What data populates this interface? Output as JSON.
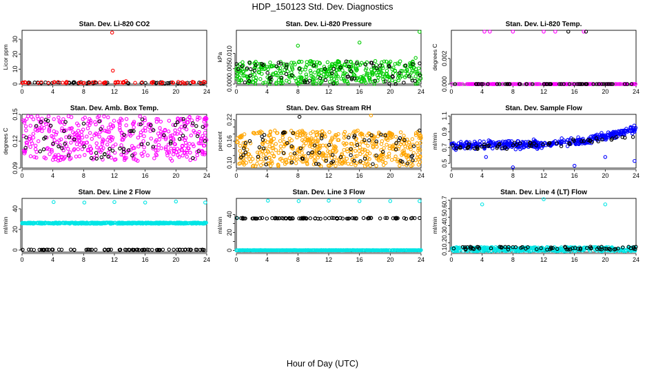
{
  "figure": {
    "title": "HDP_150123  Std. Dev. Diagnostics",
    "xlabel": "Hour of Day (UTC)"
  },
  "chart_data": [
    {
      "type": "scatter",
      "title": "Stan. Dev. Li-820 CO2",
      "ylabel": "Licor ppm",
      "xlim": [
        0,
        24
      ],
      "ylim": [
        0,
        36
      ],
      "xticks": [
        "0",
        "4",
        "8",
        "12",
        "16",
        "20",
        "24"
      ],
      "yticks": [
        0,
        10,
        20,
        30
      ],
      "series": [
        {
          "name": "black",
          "color": "#000000",
          "mode": "band",
          "n": 50,
          "base": 0.4,
          "spread": 0.9,
          "seed": 11
        },
        {
          "name": "red",
          "color": "#ff0000",
          "mode": "band",
          "n": 60,
          "base": 0.5,
          "spread": 1.0,
          "seed": 12,
          "points": [
            [
              11.7,
              34.5
            ],
            [
              11.8,
              9.0
            ],
            [
              13.5,
              2.0
            ],
            [
              2.5,
              1.3
            ]
          ]
        }
      ]
    },
    {
      "type": "scatter",
      "title": "Stan. Dev. Li-820 Pressure",
      "ylabel": "kPa",
      "xlim": [
        0,
        24
      ],
      "ylim": [
        0,
        0.0175
      ],
      "xticks": [
        "0",
        "4",
        "8",
        "12",
        "16",
        "20",
        "24"
      ],
      "yticks": [
        0.0,
        0.005,
        0.01
      ],
      "ytickFormat": 3,
      "series": [
        {
          "name": "green",
          "color": "#00cc00",
          "mode": "band",
          "n": 430,
          "base": 0.0,
          "spread": 0.0075,
          "seed": 21,
          "points": [
            [
              8.0,
              0.0125
            ],
            [
              16.0,
              0.0135
            ],
            [
              23.8,
              0.017
            ],
            [
              23.3,
              0.0085
            ],
            [
              0.5,
              0.0065
            ]
          ]
        },
        {
          "name": "black",
          "color": "#000000",
          "mode": "band",
          "n": 70,
          "base": 0.0,
          "spread": 0.0075,
          "seed": 22
        }
      ]
    },
    {
      "type": "scatter",
      "title": "Stan. Dev. Li-820 Temp.",
      "ylabel": "degrees C",
      "xlim": [
        0,
        24
      ],
      "ylim": [
        0,
        0.0042
      ],
      "xticks": [
        "0",
        "4",
        "8",
        "12",
        "16",
        "20",
        "24"
      ],
      "yticks": [
        0.0,
        0.002
      ],
      "ytickFormat": 3,
      "series": [
        {
          "name": "magenta",
          "color": "#ff00ff",
          "mode": "band",
          "n": 150,
          "base": 0.0,
          "spread": 0.0,
          "seed": 31,
          "points": [
            [
              4.3,
              0.0041
            ],
            [
              5.0,
              0.0041
            ],
            [
              8.0,
              0.0041
            ],
            [
              12.0,
              0.0041
            ],
            [
              13.5,
              0.0041
            ],
            [
              17.2,
              0.0041
            ]
          ]
        },
        {
          "name": "black",
          "color": "#000000",
          "mode": "band",
          "n": 55,
          "base": 0.0,
          "spread": 0.0,
          "seed": 32,
          "points": [
            [
              15.2,
              0.0041
            ],
            [
              17.5,
              0.0041
            ]
          ]
        }
      ]
    },
    {
      "type": "scatter",
      "title": "Stan. Dev. Amb. Box Temp.",
      "ylabel": "degrees C",
      "xlim": [
        0,
        24
      ],
      "ylim": [
        0.09,
        0.15
      ],
      "xticks": [
        "0",
        "4",
        "8",
        "12",
        "16",
        "20",
        "24"
      ],
      "yticks": [
        0.09,
        0.12,
        0.15
      ],
      "ytickFormat": 2,
      "series": [
        {
          "name": "magenta",
          "color": "#ff00ff",
          "mode": "band",
          "n": 440,
          "base": 0.098,
          "spread": 0.05,
          "seed": 41
        },
        {
          "name": "black",
          "color": "#000000",
          "mode": "band",
          "n": 65,
          "base": 0.1,
          "spread": 0.045,
          "seed": 42
        }
      ]
    },
    {
      "type": "scatter",
      "title": "Stan. Dev. Gas Stream RH",
      "ylabel": "percent",
      "xlim": [
        0,
        24
      ],
      "ylim": [
        0.085,
        0.235
      ],
      "xticks": [
        "0",
        "4",
        "8",
        "12",
        "16",
        "20",
        "24"
      ],
      "yticks": [
        0.1,
        0.12,
        0.14,
        0.16,
        0.18,
        0.2,
        0.22
      ],
      "yticksShown": [
        0.1,
        0.16,
        0.22
      ],
      "ytickFormat": 2,
      "series": [
        {
          "name": "orange",
          "color": "#ffa500",
          "mode": "band",
          "n": 520,
          "base": 0.09,
          "spread": 0.1,
          "seed": 51,
          "points": [
            [
              8.0,
              0.185
            ],
            [
              17.5,
              0.232
            ],
            [
              5.0,
              0.19
            ]
          ]
        },
        {
          "name": "black",
          "color": "#000000",
          "mode": "band",
          "n": 70,
          "base": 0.095,
          "spread": 0.09,
          "seed": 52,
          "points": [
            [
              8.2,
              0.228
            ],
            [
              23.8,
              0.19
            ]
          ]
        }
      ]
    },
    {
      "type": "scatter",
      "title": "Stan. Dev. Sample Flow",
      "ylabel": "ml/min",
      "xlim": [
        0,
        24
      ],
      "ylim": [
        0.44,
        1.12
      ],
      "xticks": [
        "0",
        "4",
        "8",
        "12",
        "16",
        "20",
        "24"
      ],
      "yticks": [
        0.5,
        0.6,
        0.7,
        0.8,
        0.9,
        1.0,
        1.1
      ],
      "yticksShown": [
        0.5,
        0.7,
        0.9,
        1.1
      ],
      "ytickFormat": 1,
      "series": [
        {
          "name": "blue",
          "color": "#0000ff",
          "mode": "trend",
          "n": 420,
          "seed": 61,
          "trend": [
            [
              0,
              0.72
            ],
            [
              12,
              0.74
            ],
            [
              18,
              0.8
            ],
            [
              24,
              0.93
            ]
          ],
          "jitter": 0.07,
          "points": [
            [
              8.0,
              0.45
            ],
            [
              16.0,
              0.47
            ],
            [
              23.8,
              0.53
            ],
            [
              20.0,
              0.58
            ],
            [
              4.5,
              0.58
            ]
          ]
        },
        {
          "name": "black",
          "color": "#000000",
          "mode": "trend",
          "n": 60,
          "seed": 62,
          "trend": [
            [
              0,
              0.7
            ],
            [
              12,
              0.74
            ],
            [
              24,
              0.84
            ]
          ],
          "jitter": 0.06
        }
      ]
    },
    {
      "type": "scatter",
      "title": "Stan. Dev. Line 2 Flow",
      "ylabel": "ml/min",
      "xlim": [
        0,
        24
      ],
      "ylim": [
        -2,
        50
      ],
      "xticks": [
        "0",
        "4",
        "8",
        "12",
        "16",
        "20",
        "24"
      ],
      "yticks": [
        0,
        20,
        40
      ],
      "series": [
        {
          "name": "cyan",
          "color": "#00e5e5",
          "mode": "band",
          "n": 500,
          "base": 25.5,
          "spread": 1.2,
          "seed": 71,
          "points": [
            [
              4.1,
              46.5
            ],
            [
              8.1,
              46.0
            ],
            [
              12.0,
              46.5
            ],
            [
              16.0,
              46.0
            ],
            [
              20.0,
              47.0
            ],
            [
              23.8,
              46.0
            ]
          ]
        },
        {
          "name": "black",
          "color": "#000000",
          "mode": "band",
          "n": 80,
          "base": 0.2,
          "spread": 0.3,
          "seed": 72
        }
      ]
    },
    {
      "type": "scatter",
      "title": "Stan. Dev. Line 3 Flow",
      "ylabel": "ml/min",
      "xlim": [
        0,
        24
      ],
      "ylim": [
        -2,
        58
      ],
      "xticks": [
        "0",
        "4",
        "8",
        "12",
        "16",
        "20",
        "24"
      ],
      "yticks": [
        0,
        10,
        20,
        30,
        40
      ],
      "yticksShown": [
        0,
        20,
        40
      ],
      "series": [
        {
          "name": "cyan",
          "color": "#00e5e5",
          "mode": "band",
          "n": 500,
          "base": 0.0,
          "spread": 0.3,
          "seed": 81,
          "points": [
            [
              0.1,
              36
            ],
            [
              4.1,
              55.5
            ],
            [
              8.1,
              55.0
            ],
            [
              12.0,
              55.5
            ],
            [
              16.0,
              55.0
            ],
            [
              20.0,
              55.0
            ],
            [
              23.8,
              55.0
            ]
          ]
        },
        {
          "name": "black",
          "color": "#000000",
          "mode": "band",
          "n": 90,
          "base": 35.3,
          "spread": 1.0,
          "seed": 82
        }
      ]
    },
    {
      "type": "scatter",
      "title": "Stan. Dev. Line 4 (LT) Flow",
      "ylabel": "ml/min",
      "xlim": [
        0,
        24
      ],
      "ylim": [
        0.09,
        0.72
      ],
      "xticks": [
        "0",
        "4",
        "8",
        "12",
        "16",
        "20",
        "24"
      ],
      "yticks": [
        0.1,
        0.2,
        0.3,
        0.4,
        0.5,
        0.6,
        0.7
      ],
      "ytickFormat": 1,
      "series": [
        {
          "name": "cyan",
          "color": "#00e5e5",
          "mode": "band",
          "n": 420,
          "base": 0.1,
          "spread": 0.05,
          "seed": 91,
          "points": [
            [
              4.0,
              0.65
            ],
            [
              12.0,
              0.71
            ],
            [
              20.0,
              0.65
            ],
            [
              0.3,
              0.14
            ]
          ]
        },
        {
          "name": "black",
          "color": "#000000",
          "mode": "band",
          "n": 70,
          "base": 0.12,
          "spread": 0.035,
          "seed": 92
        }
      ]
    }
  ]
}
